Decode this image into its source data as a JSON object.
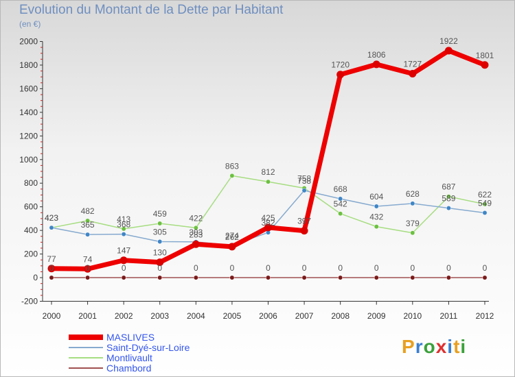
{
  "title": "Evolution du Montant de la Dette par Habitant",
  "unit": "(en €)",
  "logo": {
    "parts": [
      {
        "t": "P",
        "c": "#e8a020"
      },
      {
        "t": "r",
        "c": "#3b7fd0"
      },
      {
        "t": "o",
        "c": "#3ba03b"
      },
      {
        "t": "x",
        "c": "#e03030"
      },
      {
        "t": "i",
        "c": "#3b7fd0"
      },
      {
        "t": "t",
        "c": "#e8a020"
      },
      {
        "t": "i",
        "c": "#3ba03b"
      }
    ]
  },
  "chart_data": {
    "type": "line",
    "x": [
      "2000",
      "2001",
      "2002",
      "2003",
      "2004",
      "2005",
      "2006",
      "2007",
      "2008",
      "2009",
      "2010",
      "2011",
      "2012"
    ],
    "ylim": [
      -200,
      2000
    ],
    "yticks": [
      "-200",
      "0",
      "200",
      "400",
      "600",
      "800",
      "1000",
      "1200",
      "1400",
      "1600",
      "1800",
      "2000"
    ],
    "grid": false,
    "legend_position": "bottom-left",
    "series": [
      {
        "name": "MASLIVES",
        "color": "#ee0000",
        "dot": "#dd0000",
        "width": 7,
        "values": [
          77,
          74,
          147,
          130,
          283,
          262,
          425,
          397,
          1720,
          1806,
          1727,
          1922,
          1801
        ],
        "labels": [
          "77",
          "74",
          "147",
          "130",
          "283",
          "262",
          "425",
          "397",
          "1720",
          "1806",
          "1727",
          "1922",
          "1801"
        ]
      },
      {
        "name": "Saint-Dyé-sur-Loire",
        "color": "#86aacf",
        "dot": "#3f86c6",
        "width": 1.5,
        "values": [
          423,
          365,
          368,
          305,
          303,
          274,
          382,
          738,
          668,
          604,
          628,
          589,
          549
        ],
        "labels": [
          "423",
          "365",
          "368",
          "305",
          "303",
          "274",
          "382",
          "738",
          "668",
          "604",
          "628",
          "589",
          "549"
        ]
      },
      {
        "name": "Montlivault",
        "color": "#a6dd80",
        "dot": "#6cc040",
        "width": 1.5,
        "values": [
          423,
          482,
          413,
          459,
          422,
          863,
          812,
          758,
          542,
          432,
          379,
          687,
          622
        ],
        "labels": [
          "423",
          "482",
          "413",
          "459",
          "422",
          "863",
          "812",
          "758",
          "542",
          "432",
          "379",
          "687",
          "622"
        ]
      },
      {
        "name": "Chambord",
        "color": "#a05050",
        "dot": "#7a1a1a",
        "width": 1.5,
        "values": [
          0,
          0,
          0,
          0,
          0,
          0,
          0,
          0,
          0,
          0,
          0,
          0,
          0
        ],
        "labels": [
          "0",
          "0",
          "0",
          "0",
          "0",
          "0",
          "0",
          "0",
          "0",
          "0",
          "0",
          "0",
          "0"
        ]
      }
    ]
  }
}
